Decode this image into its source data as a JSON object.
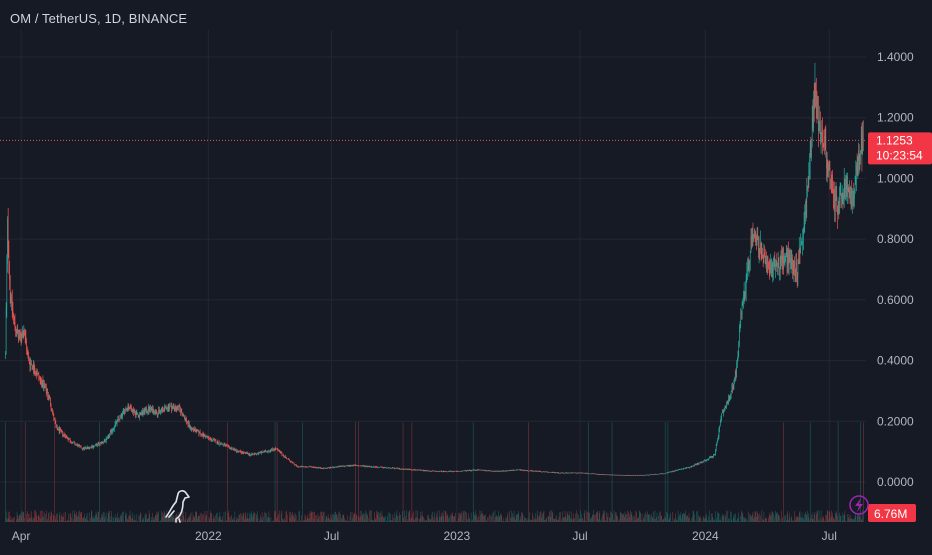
{
  "header": {
    "symbol_title": "OM / TetherUS, 1D, BINANCE"
  },
  "colors": {
    "background": "#161a25",
    "grid": "#232733",
    "up": "#26a69a",
    "down": "#ef5350",
    "price_line": "#ef5350",
    "axis_text": "#b2b5be"
  },
  "icons": {
    "logo": "dinosaur-icon",
    "lightning": "lightning-icon"
  },
  "chart_data": {
    "type": "candlestick",
    "y_ticks": [
      "0.0000",
      "0.2000",
      "0.4000",
      "0.6000",
      "0.8000",
      "1.0000",
      "1.2000",
      "1.4000"
    ],
    "y_tick_values": [
      0,
      0.2,
      0.4,
      0.6,
      0.8,
      1.0,
      1.2,
      1.4
    ],
    "ylim": [
      -0.01,
      1.44
    ],
    "x_ticks": [
      {
        "label": "Apr",
        "date": "2021-04-01"
      },
      {
        "label": "2022",
        "date": "2022-01-01"
      },
      {
        "label": "Jul",
        "date": "2022-07-01"
      },
      {
        "label": "2023",
        "date": "2023-01-01"
      },
      {
        "label": "Jul",
        "date": "2023-07-01"
      },
      {
        "label": "2024",
        "date": "2024-01-01"
      },
      {
        "label": "Jul",
        "date": "2024-07-01"
      }
    ],
    "xlim": [
      "2021-03-01",
      "2024-08-24"
    ],
    "current_price": {
      "value": 1.1253,
      "label": "1.1253",
      "countdown": "10:23:54"
    },
    "volume_label": "6.76M",
    "grid": true,
    "series": [
      {
        "points": [
          [
            "2021-03-09",
            0.42
          ],
          [
            "2021-03-12",
            0.85
          ],
          [
            "2021-03-16",
            0.62
          ],
          [
            "2021-03-22",
            0.52
          ],
          [
            "2021-03-29",
            0.47
          ],
          [
            "2021-04-05",
            0.5
          ],
          [
            "2021-04-12",
            0.4
          ],
          [
            "2021-04-19",
            0.38
          ],
          [
            "2021-04-26",
            0.35
          ],
          [
            "2021-05-03",
            0.32
          ],
          [
            "2021-05-12",
            0.28
          ],
          [
            "2021-05-22",
            0.18
          ],
          [
            "2021-06-01",
            0.16
          ],
          [
            "2021-06-15",
            0.13
          ],
          [
            "2021-07-01",
            0.11
          ],
          [
            "2021-07-20",
            0.12
          ],
          [
            "2021-08-05",
            0.14
          ],
          [
            "2021-08-20",
            0.2
          ],
          [
            "2021-09-05",
            0.25
          ],
          [
            "2021-09-20",
            0.22
          ],
          [
            "2021-10-05",
            0.24
          ],
          [
            "2021-10-20",
            0.23
          ],
          [
            "2021-11-05",
            0.25
          ],
          [
            "2021-11-20",
            0.24
          ],
          [
            "2021-12-05",
            0.18
          ],
          [
            "2021-12-20",
            0.16
          ],
          [
            "2022-01-05",
            0.14
          ],
          [
            "2022-01-25",
            0.12
          ],
          [
            "2022-02-15",
            0.1
          ],
          [
            "2022-03-05",
            0.09
          ],
          [
            "2022-03-25",
            0.1
          ],
          [
            "2022-04-10",
            0.11
          ],
          [
            "2022-04-25",
            0.08
          ],
          [
            "2022-05-12",
            0.05
          ],
          [
            "2022-06-01",
            0.05
          ],
          [
            "2022-06-20",
            0.045
          ],
          [
            "2022-07-10",
            0.05
          ],
          [
            "2022-08-01",
            0.055
          ],
          [
            "2022-09-01",
            0.05
          ],
          [
            "2022-10-01",
            0.045
          ],
          [
            "2022-11-01",
            0.04
          ],
          [
            "2022-12-01",
            0.035
          ],
          [
            "2023-01-01",
            0.035
          ],
          [
            "2023-02-01",
            0.04
          ],
          [
            "2023-03-01",
            0.035
          ],
          [
            "2023-04-01",
            0.04
          ],
          [
            "2023-05-01",
            0.035
          ],
          [
            "2023-06-01",
            0.03
          ],
          [
            "2023-07-01",
            0.03
          ],
          [
            "2023-08-01",
            0.025
          ],
          [
            "2023-09-01",
            0.022
          ],
          [
            "2023-10-01",
            0.022
          ],
          [
            "2023-11-01",
            0.028
          ],
          [
            "2023-12-10",
            0.05
          ],
          [
            "2023-12-31",
            0.07
          ],
          [
            "2024-01-15",
            0.09
          ],
          [
            "2024-01-25",
            0.22
          ],
          [
            "2024-02-05",
            0.27
          ],
          [
            "2024-02-15",
            0.36
          ],
          [
            "2024-02-22",
            0.55
          ],
          [
            "2024-03-01",
            0.66
          ],
          [
            "2024-03-10",
            0.82
          ],
          [
            "2024-03-20",
            0.78
          ],
          [
            "2024-04-01",
            0.7
          ],
          [
            "2024-04-15",
            0.72
          ],
          [
            "2024-05-01",
            0.74
          ],
          [
            "2024-05-15",
            0.7
          ],
          [
            "2024-05-25",
            0.85
          ],
          [
            "2024-06-01",
            1.0
          ],
          [
            "2024-06-10",
            1.3
          ],
          [
            "2024-06-15",
            1.2
          ],
          [
            "2024-06-25",
            1.1
          ],
          [
            "2024-07-05",
            0.95
          ],
          [
            "2024-07-15",
            0.9
          ],
          [
            "2024-07-25",
            0.98
          ],
          [
            "2024-08-05",
            0.92
          ],
          [
            "2024-08-15",
            1.1
          ],
          [
            "2024-08-20",
            1.1253
          ]
        ]
      }
    ]
  }
}
